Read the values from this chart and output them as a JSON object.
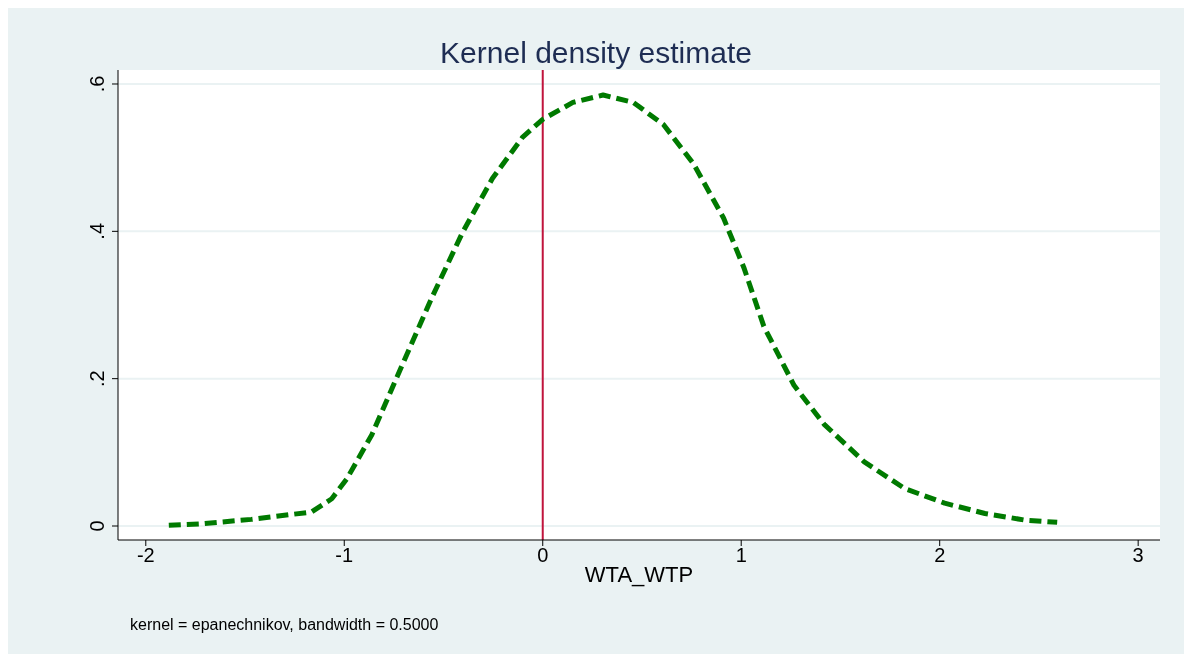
{
  "chart_data": {
    "type": "line",
    "title": "Kernel density estimate",
    "xlabel": "WTA_WTP",
    "annotations": [
      "kernel = epanechnikov, bandwidth = 0.5000"
    ],
    "x": [
      -1.884,
      -1.72,
      -1.468,
      -1.165,
      -1.063,
      -0.987,
      -0.861,
      -0.709,
      -0.557,
      -0.405,
      -0.253,
      -0.101,
      0,
      0.152,
      0.304,
      0.456,
      0.608,
      0.759,
      0.911,
      1.013,
      1.114,
      1.266,
      1.418,
      1.62,
      1.823,
      2.025,
      2.228,
      2.43,
      2.592
    ],
    "series": [
      {
        "color": "#007a00",
        "values": [
          0.001,
          0.003,
          0.009,
          0.019,
          0.037,
          0.064,
          0.124,
          0.218,
          0.311,
          0.398,
          0.472,
          0.528,
          0.552,
          0.575,
          0.585,
          0.575,
          0.545,
          0.492,
          0.418,
          0.351,
          0.271,
          0.191,
          0.138,
          0.087,
          0.051,
          0.031,
          0.017,
          0.008,
          0.005
        ]
      }
    ],
    "xlim": [
      -2.14,
      3.11
    ],
    "xticks": [
      -2,
      -1,
      0,
      1,
      2,
      3
    ],
    "ylim": [
      -0.019,
      0.619
    ],
    "yticks": [
      {
        "value": 0,
        "label": "0"
      },
      {
        "value": 0.2,
        "label": ".2"
      },
      {
        "value": 0.4,
        "label": ".4"
      },
      {
        "value": 0.6,
        "label": ".6"
      }
    ],
    "grid": "y",
    "line_style": "dashed",
    "ref_lines": [
      {
        "axis": "x",
        "value": 0,
        "color": "#c0143c"
      }
    ]
  }
}
